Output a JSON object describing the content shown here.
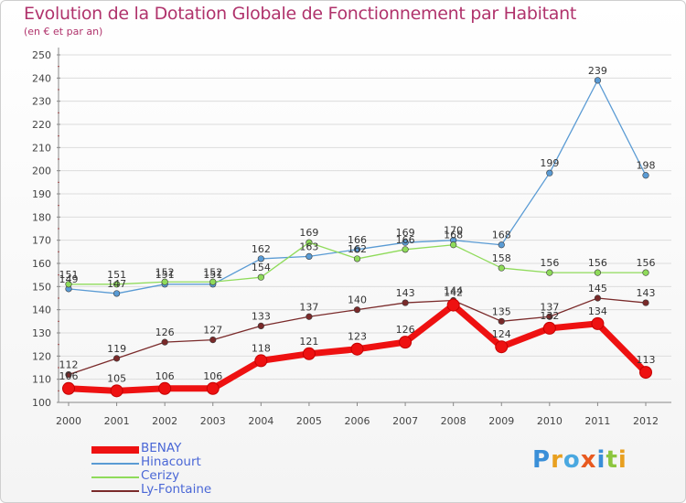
{
  "chart_data": {
    "type": "line",
    "title": "Evolution de la Dotation Globale de Fonctionnement par Habitant",
    "subtitle": "(en € et par an)",
    "x": [
      "2000",
      "2001",
      "2002",
      "2003",
      "2004",
      "2005",
      "2006",
      "2007",
      "2008",
      "2009",
      "2010",
      "2011",
      "2012"
    ],
    "ylim": [
      100,
      250
    ],
    "yticks": [
      100,
      110,
      120,
      130,
      140,
      150,
      160,
      170,
      180,
      190,
      200,
      210,
      220,
      230,
      240,
      250
    ],
    "series": [
      {
        "name": "Hinacourt",
        "color": "#5a9bd4",
        "values": [
          149,
          147,
          151,
          151,
          162,
          163,
          166,
          169,
          170,
          168,
          199,
          239,
          198
        ]
      },
      {
        "name": "Cerizy",
        "color": "#8fdb5a",
        "values": [
          151,
          151,
          152,
          152,
          154,
          169,
          162,
          166,
          168,
          158,
          156,
          156,
          156
        ]
      },
      {
        "name": "Ly-Fontaine",
        "color": "#7a2a2a",
        "values": [
          112,
          119,
          126,
          127,
          133,
          137,
          140,
          143,
          144,
          135,
          137,
          145,
          143
        ]
      },
      {
        "name": "BENAY",
        "color": "#ee1111",
        "values": [
          106,
          105,
          106,
          106,
          118,
          121,
          123,
          126,
          142,
          124,
          132,
          134,
          113
        ]
      }
    ]
  },
  "legend": {
    "items": [
      "BENAY",
      "Hinacourt",
      "Cerizy",
      "Ly-Fontaine"
    ]
  },
  "logo": {
    "letters": [
      "P",
      "r",
      "o",
      "x",
      "i",
      "t",
      "i"
    ]
  }
}
